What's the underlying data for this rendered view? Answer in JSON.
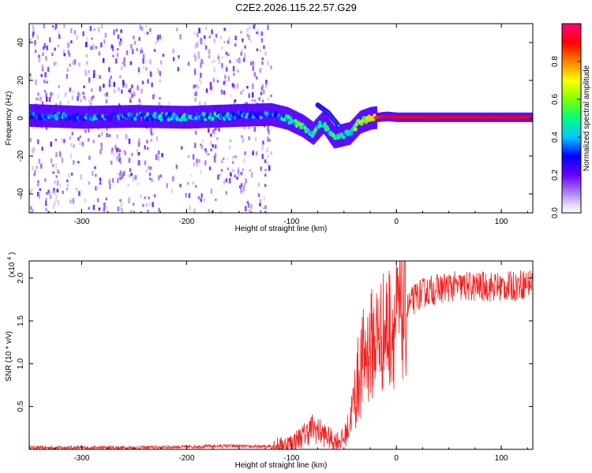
{
  "title": "C2E2.2026.115.22.57.G29",
  "colors": {
    "snr_line": "#ee2222",
    "frame": "#000000",
    "background": "#ffffff"
  },
  "chart_data": [
    {
      "type": "heatmap",
      "xlabel": "Height of straight line (km)",
      "ylabel": "Frequency (Hz)",
      "xlim": [
        -350,
        130
      ],
      "ylim": [
        -50,
        50
      ],
      "x_ticks": [
        -300,
        -200,
        -100,
        0,
        100
      ],
      "x_tick_labels": [
        "-300",
        "-200",
        "-100",
        "0",
        "100"
      ],
      "y_ticks": [
        -40,
        -20,
        0,
        20,
        40
      ],
      "y_tick_labels": [
        "-40",
        "-20",
        "0",
        "20",
        "40"
      ],
      "colorbar": {
        "label": "Normalized spectral amplitude",
        "range": [
          0,
          1
        ],
        "colormap": "rainbow (purple-blue-cyan-green-yellow-red-magenta)",
        "ticks": [
          0.0,
          0.2,
          0.4,
          0.6,
          0.8
        ],
        "tick_labels": [
          "0.0",
          "0.2",
          "0.4",
          "0.6",
          "0.8"
        ]
      },
      "ridge": [
        {
          "x": -350,
          "freq": 1.5,
          "amp": 0.45
        },
        {
          "x": -300,
          "freq": 0.5,
          "amp": 0.45
        },
        {
          "x": -250,
          "freq": 1.0,
          "amp": 0.45
        },
        {
          "x": -200,
          "freq": 0.5,
          "amp": 0.55
        },
        {
          "x": -150,
          "freq": 1.5,
          "amp": 0.45
        },
        {
          "x": -120,
          "freq": 2.0,
          "amp": 0.45
        },
        {
          "x": -105,
          "freq": 0.0,
          "amp": 0.55
        },
        {
          "x": -90,
          "freq": -4.0,
          "amp": 0.6
        },
        {
          "x": -80,
          "freq": -8.0,
          "amp": 0.6
        },
        {
          "x": -70,
          "freq": -2.0,
          "amp": 0.55
        },
        {
          "x": -60,
          "freq": -10.0,
          "amp": 0.6
        },
        {
          "x": -45,
          "freq": -8.0,
          "amp": 0.6
        },
        {
          "x": -35,
          "freq": -2.0,
          "amp": 0.7
        },
        {
          "x": -25,
          "freq": 0.0,
          "amp": 0.85
        },
        {
          "x": -10,
          "freq": 1.0,
          "amp": 0.9
        },
        {
          "x": 0,
          "freq": 0.5,
          "amp": 0.9
        },
        {
          "x": 50,
          "freq": 0.5,
          "amp": 0.9
        },
        {
          "x": 100,
          "freq": 0.5,
          "amp": 0.9
        },
        {
          "x": 130,
          "freq": 0.5,
          "amp": 0.9
        }
      ],
      "secondary_branch": [
        {
          "x": -75,
          "freq": 7.0,
          "amp": 0.6
        },
        {
          "x": -65,
          "freq": 3.0,
          "amp": 0.6
        },
        {
          "x": -55,
          "freq": -4.0,
          "amp": 0.55
        }
      ],
      "noise_region": {
        "x_from": -350,
        "x_to": -120,
        "freq_range": [
          -50,
          50
        ],
        "amp": 0.15
      }
    },
    {
      "type": "line",
      "xlabel": "Height of straight line (km)",
      "ylabel": "SNR (10 * v/v)",
      "y_multiplier_label": "(x10",
      "y_multiplier_exponent": "4",
      "y_multiplier_close": ")",
      "xlim": [
        -350,
        130
      ],
      "ylim": [
        0,
        2.2
      ],
      "x_ticks": [
        -300,
        -200,
        -100,
        0,
        100
      ],
      "x_tick_labels": [
        "-300",
        "-200",
        "-100",
        "0",
        "100"
      ],
      "y_ticks": [
        0.5,
        1.0,
        1.5,
        2.0
      ],
      "y_tick_labels": [
        "0.5",
        "1.0",
        "1.5",
        "2.0"
      ],
      "series": [
        {
          "x": [
            -350,
            -300,
            -250,
            -200,
            -160,
            -130,
            -110,
            -100,
            -90,
            -80,
            -70,
            -60,
            -50,
            -45,
            -40,
            -35,
            -30,
            -25,
            -20,
            -15,
            -10,
            -5,
            0,
            10,
            20,
            30,
            50,
            70,
            90,
            110,
            130
          ],
          "y": [
            0.02,
            0.02,
            0.02,
            0.03,
            0.04,
            0.03,
            0.05,
            0.08,
            0.15,
            0.25,
            0.18,
            0.1,
            0.12,
            0.3,
            0.6,
            0.9,
            1.1,
            1.2,
            1.3,
            1.35,
            1.4,
            1.45,
            1.5,
            1.65,
            1.8,
            1.85,
            1.9,
            1.9,
            1.9,
            1.9,
            1.95
          ]
        }
      ]
    }
  ]
}
